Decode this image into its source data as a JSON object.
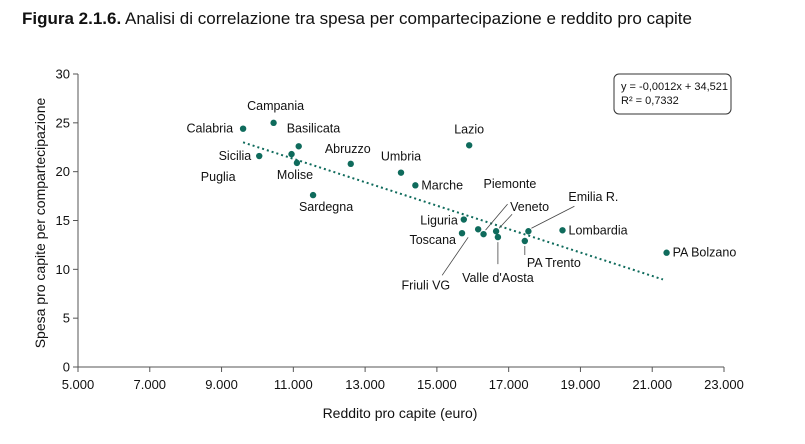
{
  "figure": {
    "number": "Figura 2.1.6.",
    "caption": "Analisi di correlazione tra spesa per compartecipazione e reddito pro capite"
  },
  "colors": {
    "points": "#0f6b5c",
    "trend": "#0f6b5c",
    "axis": "#555555"
  },
  "chart_data": {
    "type": "scatter",
    "xlabel": "Reddito pro capite (euro)",
    "ylabel": "Spesa pro capite per compartecipazione",
    "xlim": [
      5000,
      23000
    ],
    "ylim": [
      0,
      30
    ],
    "xticks": [
      5000,
      7000,
      9000,
      11000,
      13000,
      15000,
      17000,
      19000,
      21000,
      23000
    ],
    "xtick_labels": [
      "5.000",
      "7.000",
      "9.000",
      "11.000",
      "13.000",
      "15.000",
      "17.000",
      "19.000",
      "21.000",
      "23.000"
    ],
    "yticks": [
      0,
      5,
      10,
      15,
      20,
      25,
      30
    ],
    "ytick_labels": [
      "0",
      "5",
      "10",
      "15",
      "20",
      "25",
      "30"
    ],
    "grid": false,
    "trendline": {
      "style": "dotted",
      "slope": -0.0012,
      "intercept": 34.521,
      "x_range": [
        9600,
        21300
      ],
      "equation": "y = -0,0012x + 34,521",
      "r2": "R² = 0,7332"
    },
    "points": [
      {
        "name": "Calabria",
        "x": 9600,
        "y": 24.4
      },
      {
        "name": "Campania",
        "x": 10450,
        "y": 25.0
      },
      {
        "name": "Basilicata",
        "x": 11150,
        "y": 22.6
      },
      {
        "name": "Sicilia",
        "x": 10050,
        "y": 21.6
      },
      {
        "name": "Puglia",
        "x": 10950,
        "y": 21.8
      },
      {
        "name": "Molise",
        "x": 11100,
        "y": 20.9
      },
      {
        "name": "Abruzzo",
        "x": 12600,
        "y": 20.8
      },
      {
        "name": "Sardegna",
        "x": 11550,
        "y": 17.6
      },
      {
        "name": "Umbria",
        "x": 14000,
        "y": 19.9
      },
      {
        "name": "Marche",
        "x": 14400,
        "y": 18.6
      },
      {
        "name": "Lazio",
        "x": 15900,
        "y": 22.7
      },
      {
        "name": "Liguria",
        "x": 15750,
        "y": 15.1
      },
      {
        "name": "Toscana",
        "x": 15700,
        "y": 13.7
      },
      {
        "name": "Friuli VG",
        "x": 16150,
        "y": 14.1
      },
      {
        "name": "Piemonte",
        "x": 16300,
        "y": 13.6
      },
      {
        "name": "Valle d'Aosta",
        "x": 16700,
        "y": 13.3
      },
      {
        "name": "Veneto",
        "x": 16650,
        "y": 13.9
      },
      {
        "name": "PA Trento",
        "x": 17450,
        "y": 12.9
      },
      {
        "name": "Emilia R.",
        "x": 17550,
        "y": 13.9
      },
      {
        "name": "Lombardia",
        "x": 18500,
        "y": 14.0
      },
      {
        "name": "PA Bolzano",
        "x": 21400,
        "y": 11.7
      }
    ]
  }
}
